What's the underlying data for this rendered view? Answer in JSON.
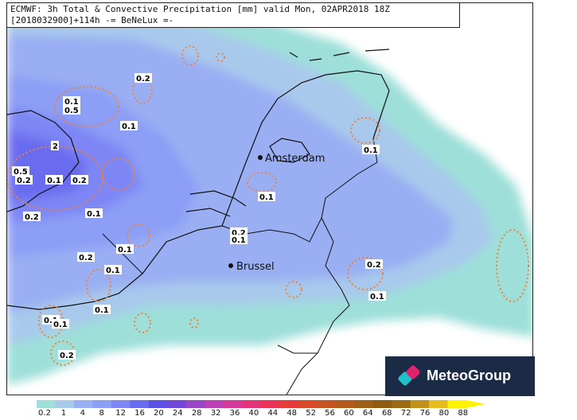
{
  "header": {
    "line1": "ECMWF: 3h Total & Convective Precipitation [mm] valid Mon, 02APR2018 18Z",
    "line2": "[2018032900]+114h -= BeNeLux =-"
  },
  "cities": [
    {
      "name": "Amsterdam"
    },
    {
      "name": "Brussel"
    }
  ],
  "value_labels": [
    "0.2",
    "0.1",
    "0.5",
    "0.1",
    "2",
    "0.5",
    "0.2",
    "0.1",
    "0.2",
    "0.1",
    "0.2",
    "0.1",
    "0.1",
    "0.2",
    "0.1",
    "0.2",
    "0.1",
    "0.1",
    "0.2",
    "0.1",
    "0.1",
    "0.1",
    "0.1",
    "0.2"
  ],
  "logo": {
    "text": "MeteoGroup",
    "icon": "meteogroup-logo-icon"
  },
  "legend": {
    "labels": [
      "0.2",
      "1",
      "4",
      "8",
      "12",
      "16",
      "20",
      "24",
      "28",
      "32",
      "36",
      "40",
      "44",
      "48",
      "52",
      "56",
      "60",
      "64",
      "68",
      "72",
      "76",
      "80",
      "88"
    ],
    "colors": [
      "#9edfd9",
      "#a9c9ec",
      "#9aaef3",
      "#8c9ef5",
      "#7d86f4",
      "#6a6cf0",
      "#5e4fe6",
      "#7148d8",
      "#9a45c8",
      "#bb3fb5",
      "#d53a9a",
      "#e23678",
      "#ea3357",
      "#e53c3a",
      "#d8482b",
      "#c75222",
      "#b45a1b",
      "#a05f16",
      "#8e5b12",
      "#9a6a14",
      "#c19219",
      "#e6bd20",
      "#fff200"
    ]
  }
}
